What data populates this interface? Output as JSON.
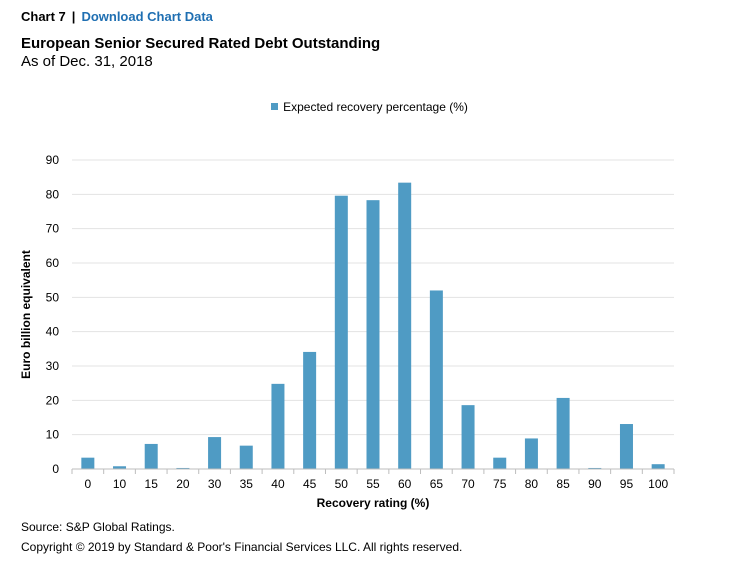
{
  "header": {
    "chart_label": "Chart 7",
    "separator": "|",
    "download_link": "Download Chart Data"
  },
  "chart_data": {
    "type": "bar",
    "title": "European Senior Secured Rated Debt Outstanding",
    "subtitle": "As of Dec. 31, 2018",
    "xlabel": "Recovery rating (%)",
    "ylabel": "Euro billion equivalent",
    "ylim": [
      0,
      90
    ],
    "yticks": [
      0,
      10,
      20,
      30,
      40,
      50,
      60,
      70,
      80,
      90
    ],
    "grid": true,
    "legend_position": "top-center",
    "categories": [
      "0",
      "10",
      "15",
      "20",
      "30",
      "35",
      "40",
      "45",
      "50",
      "55",
      "60",
      "65",
      "70",
      "75",
      "80",
      "85",
      "90",
      "95",
      "100"
    ],
    "series": [
      {
        "name": "Expected recovery percentage (%)",
        "color": "#4f9bc4",
        "values": [
          3.3,
          0.8,
          7.3,
          0.3,
          9.3,
          6.8,
          24.8,
          34.1,
          79.6,
          78.3,
          83.4,
          52.0,
          18.6,
          3.3,
          8.9,
          20.7,
          0.3,
          13.1,
          1.4
        ]
      }
    ]
  },
  "footer": {
    "source": "Source: S&P Global Ratings.",
    "copyright": "Copyright © 2019 by Standard & Poor's Financial Services LLC. All rights reserved."
  }
}
